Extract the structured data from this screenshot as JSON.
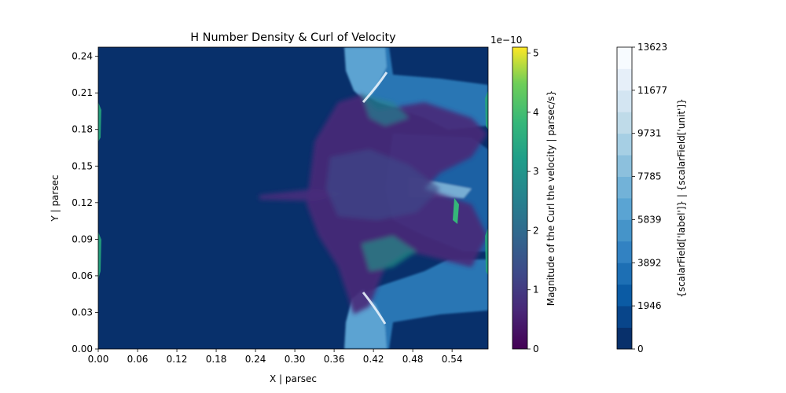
{
  "chart_data": {
    "type": "heatmap",
    "title": "H Number Density & Curl of Velocity",
    "xlabel": "X | parsec",
    "ylabel": "Y | parsec",
    "xlim": [
      0.0,
      0.595
    ],
    "ylim": [
      0.0,
      0.2475
    ],
    "xticks": [
      "0.00",
      "0.06",
      "0.12",
      "0.18",
      "0.24",
      "0.30",
      "0.36",
      "0.42",
      "0.48",
      "0.54"
    ],
    "yticks": [
      "0.00",
      "0.03",
      "0.06",
      "0.09",
      "0.12",
      "0.15",
      "0.18",
      "0.21",
      "0.24"
    ],
    "background_color": "#08306b",
    "curl_colorbar": {
      "label": "Magnitude of the Curl the velocity | parsec/s}",
      "offset_text": "1e−10",
      "range": [
        0,
        5.1e-10
      ],
      "tick_labels": [
        "0",
        "1",
        "2",
        "3",
        "4",
        "5"
      ],
      "colormap": "viridis"
    },
    "density_colorbar": {
      "label": "{scalarField['label']} | {scalarField['unit']}",
      "range": [
        0,
        13623
      ],
      "tick_labels": [
        "0",
        "1946",
        "3892",
        "5839",
        "7785",
        "9731",
        "11677",
        "13623"
      ],
      "levels": 14,
      "colormap": "Blues_r",
      "colors": [
        "#08306b",
        "#08458a",
        "#0b5ba4",
        "#1d6fb4",
        "#3282c2",
        "#4594c9",
        "#5aa4d3",
        "#72b2d8",
        "#8cc0dd",
        "#a6cfe4",
        "#bfdbe9",
        "#d3e5f2",
        "#e6eff9",
        "#f7fbff"
      ]
    }
  }
}
